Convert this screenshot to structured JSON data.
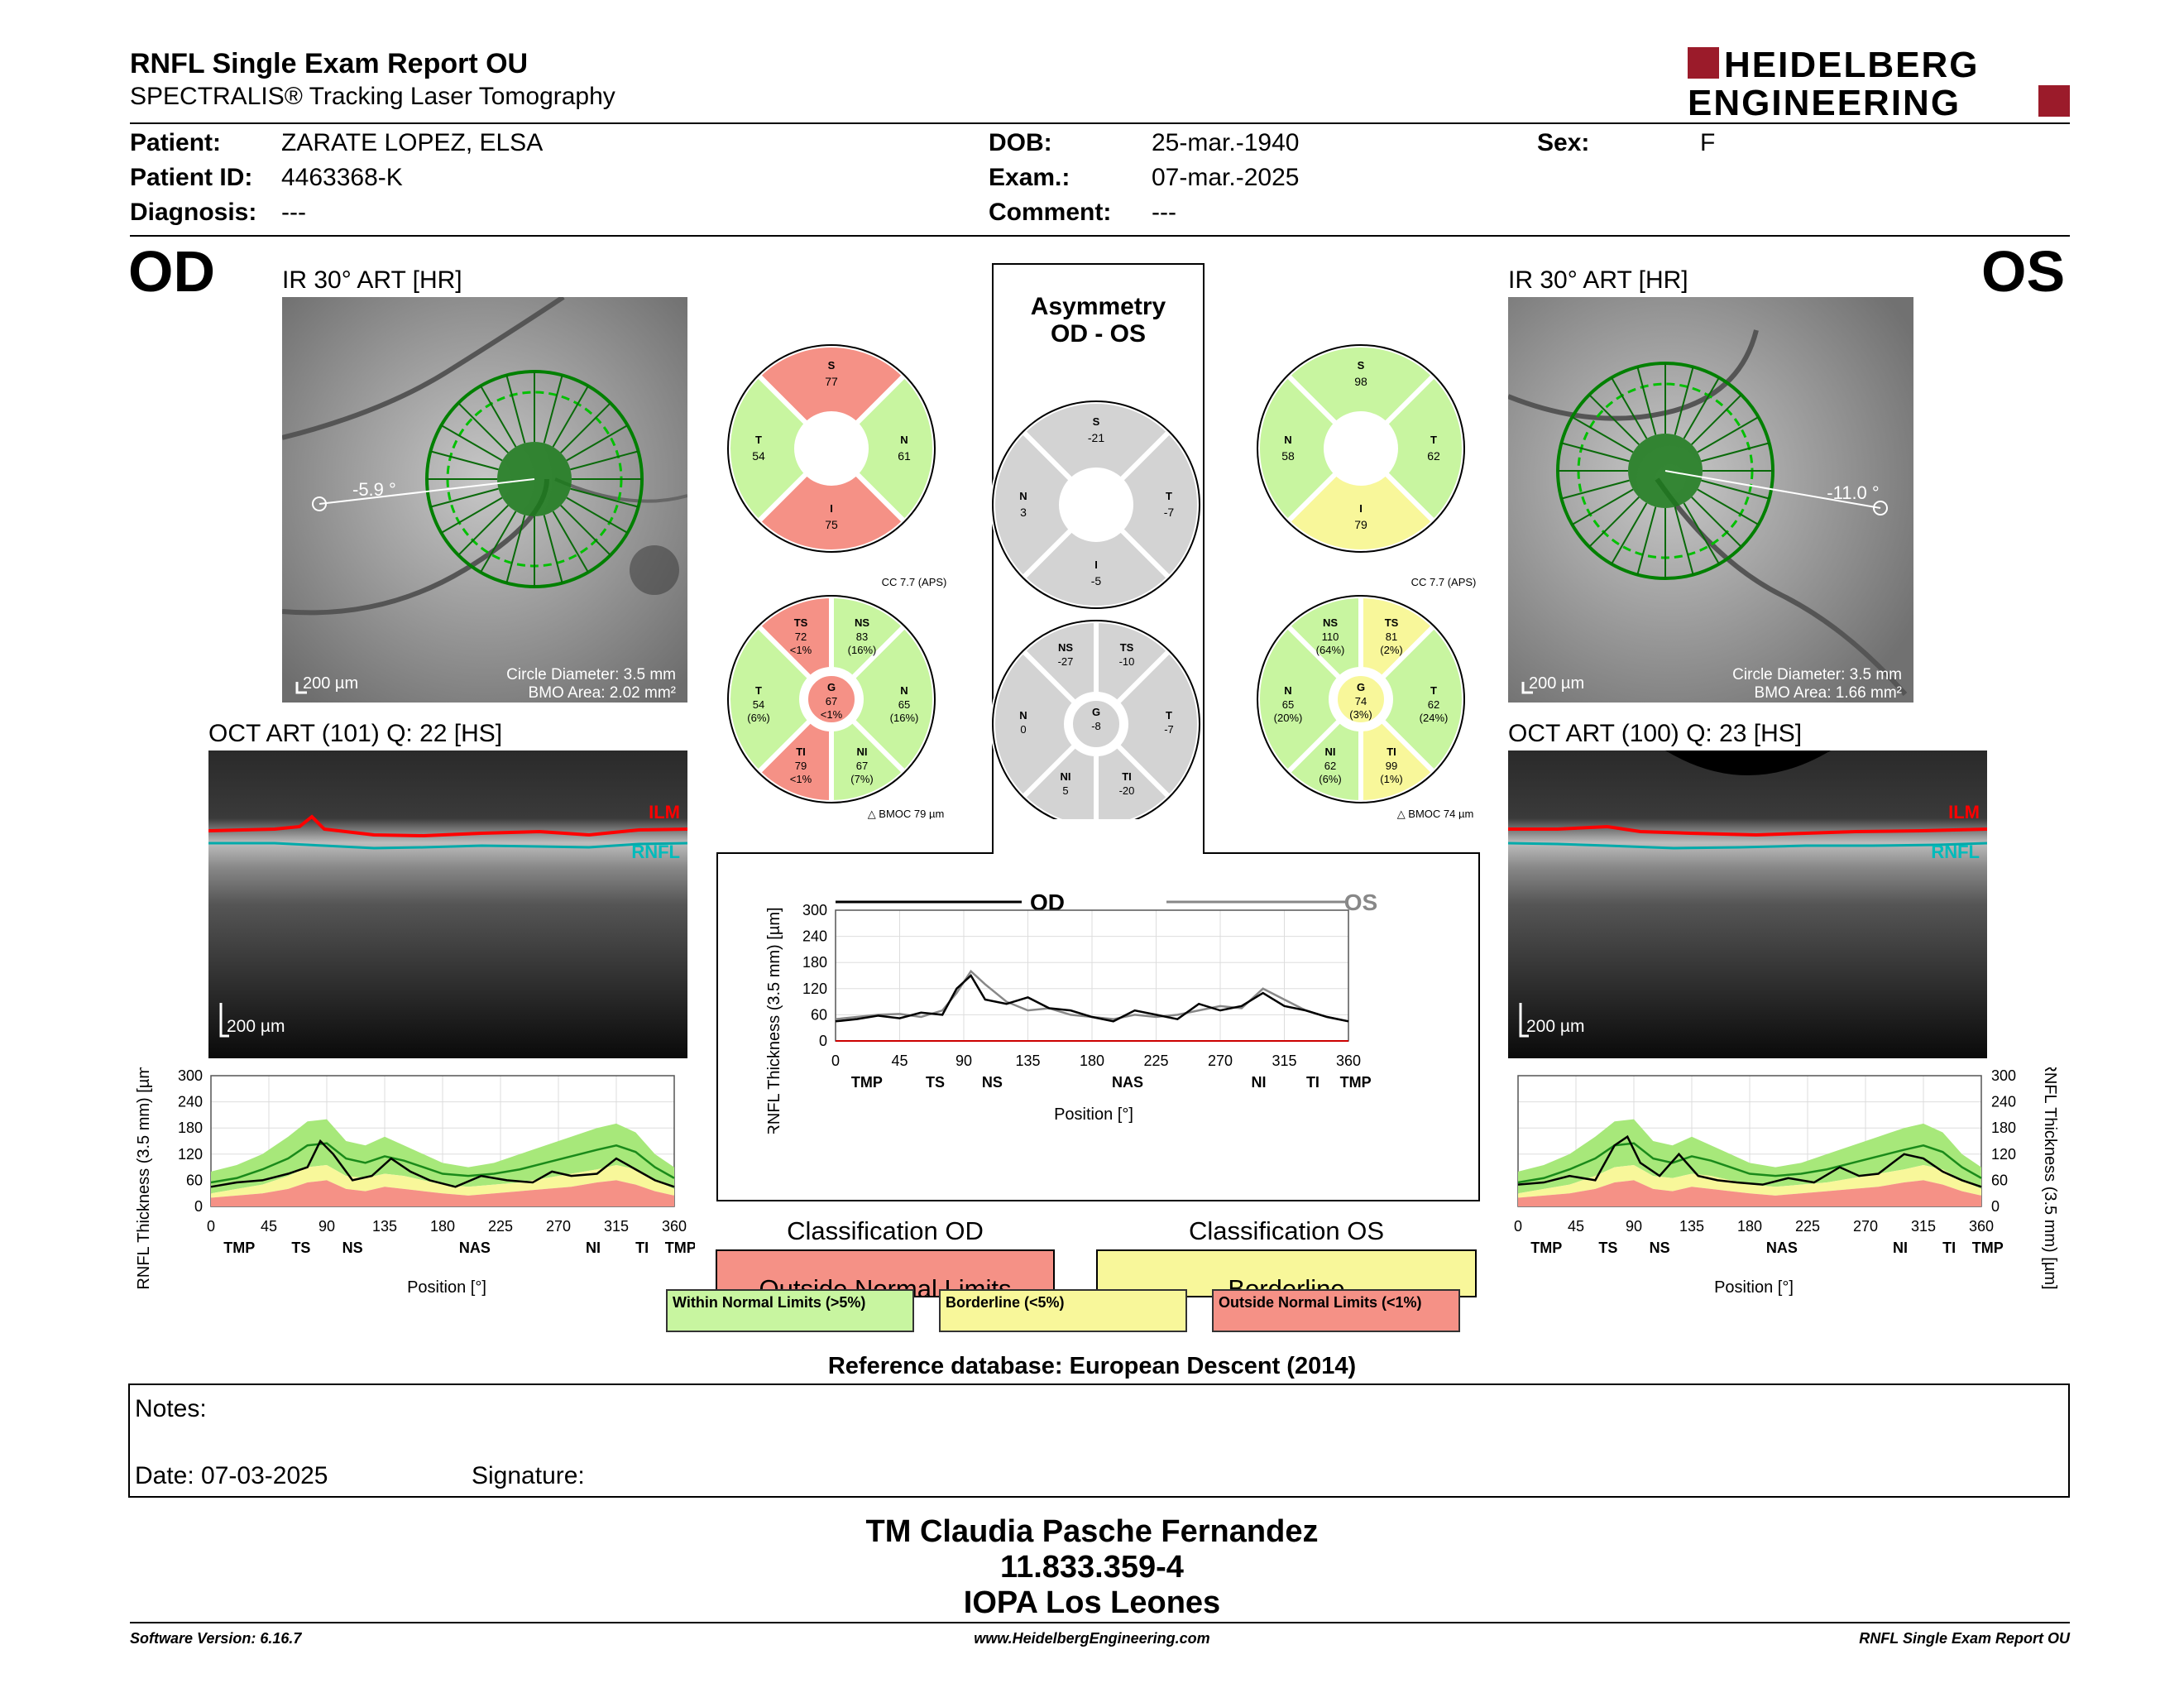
{
  "report": {
    "title": "RNFL Single Exam Report OU",
    "subtitle": "SPECTRALIS® Tracking Laser Tomography",
    "logo_line1": "HEIDELBERG",
    "logo_line2": "ENGINEERING"
  },
  "patient": {
    "patient_label": "Patient:",
    "patient_value": "ZARATE LOPEZ, ELSA",
    "id_label": "Patient ID:",
    "id_value": "4463368-K",
    "diag_label": "Diagnosis:",
    "diag_value": "---",
    "dob_label": "DOB:",
    "dob_value": "25-mar.-1940",
    "exam_label": "Exam.:",
    "exam_value": "07-mar.-2025",
    "comment_label": "Comment:",
    "comment_value": "---",
    "sex_label": "Sex:",
    "sex_value": "F"
  },
  "od": {
    "eye": "OD",
    "ir_caption": "IR 30° ART [HR]",
    "angle": "-5.9 °",
    "scale": "200 µm",
    "circle_diameter": "Circle Diameter: 3.5 mm",
    "bmo_area": "BMO Area: 2.02 mm²",
    "oct_caption": "OCT ART (101) Q: 22 [HS]",
    "oct_scale": "200 µm",
    "ilm": "ILM",
    "rnfl": "RNFL",
    "classification_title": "Classification OD",
    "classification_value": "Outside Normal Limits",
    "pie4": {
      "S": "77",
      "T": "54",
      "N": "61",
      "I": "75"
    },
    "pie6": {
      "TS": [
        "72",
        "<1%"
      ],
      "NS": [
        "83",
        "(16%)"
      ],
      "T": [
        "54",
        "(6%)"
      ],
      "G": [
        "67",
        "<1%"
      ],
      "N": [
        "65",
        "(16%)"
      ],
      "TI": [
        "79",
        "<1%"
      ],
      "NI": [
        "67",
        "(7%)"
      ]
    },
    "cc": "CC 7.7 (APS)",
    "bmo": "BMOC 79 µm"
  },
  "os": {
    "eye": "OS",
    "ir_caption": "IR 30° ART [HR]",
    "angle": "-11.0 °",
    "scale": "200 µm",
    "circle_diameter": "Circle Diameter: 3.5 mm",
    "bmo_area": "BMO Area: 1.66 mm²",
    "oct_caption": "OCT ART (100) Q: 23 [HS]",
    "oct_scale": "200 µm",
    "ilm": "ILM",
    "rnfl": "RNFL",
    "classification_title": "Classification OS",
    "classification_value": "Borderline",
    "pie4": {
      "S": "98",
      "N": "58",
      "T": "62",
      "I": "79"
    },
    "pie6": {
      "NS": [
        "110",
        "(64%)"
      ],
      "TS": [
        "81",
        "(2%)"
      ],
      "N": [
        "65",
        "(20%)"
      ],
      "G": [
        "74",
        "(3%)"
      ],
      "T": [
        "62",
        "(24%)"
      ],
      "NI": [
        "62",
        "(6%)"
      ],
      "TI": [
        "99",
        "(1%)"
      ]
    },
    "cc": "CC 7.7 (APS)",
    "bmo": "BMOC 74 µm"
  },
  "asym": {
    "title1": "Asymmetry",
    "title2": "OD - OS",
    "pie4": {
      "S": "-21",
      "N": "3",
      "T": "-7",
      "I": "-5"
    },
    "pie6": {
      "NS": "-27",
      "TS": "-10",
      "N": "0",
      "G": "-8",
      "T": "-7",
      "NI": "5",
      "TI": "-20"
    }
  },
  "center_chart": {
    "od_label": "OD",
    "os_label": "OS",
    "ylabel": "RNFL Thickness (3.5 mm) [µm]",
    "xlabel": "Position [°]"
  },
  "side_chart": {
    "ylabel": "RNFL Thickness (3.5 mm) [µm]",
    "xlabel": "Position [°]"
  },
  "legend": {
    "within": "Within Normal Limits (>5%)",
    "borderline": "Borderline (<5%)",
    "outside": "Outside Normal Limits (<1%)"
  },
  "reference": "Reference database: European Descent (2014)",
  "notes": {
    "label": "Notes:",
    "date": "Date: 07-03-2025",
    "signature": "Signature:"
  },
  "signer": {
    "name": "TM Claudia Pasche Fernandez",
    "id": "11.833.359-4",
    "place": "IOPA Los Leones"
  },
  "footer": {
    "left": "Software Version: 6.16.7",
    "center": "www.HeidelbergEngineering.com",
    "right": "RNFL Single Exam Report OU"
  },
  "colors": {
    "green": "#c8f5a0",
    "red": "#f59186",
    "yellow": "#f8f79a",
    "gray": "#d3d3d3"
  },
  "chart_data": [
    {
      "type": "line",
      "title": "",
      "xlabel": "Position [°]",
      "ylabel": "RNFL Thickness (3.5 mm) [µm]",
      "xlim": [
        0,
        360
      ],
      "ylim": [
        0,
        300
      ],
      "x_ticks": [
        0,
        45,
        90,
        135,
        180,
        225,
        270,
        315,
        360
      ],
      "y_ticks": [
        0,
        60,
        120,
        180,
        240,
        300
      ],
      "sector_labels": [
        "TMP",
        "TS",
        "NS",
        "NAS",
        "NI",
        "TI",
        "TMP"
      ],
      "series": [
        {
          "name": "OD",
          "x": [
            0,
            15,
            30,
            45,
            60,
            75,
            85,
            95,
            105,
            120,
            135,
            150,
            165,
            180,
            195,
            210,
            225,
            240,
            255,
            270,
            285,
            300,
            315,
            330,
            345,
            360
          ],
          "y": [
            45,
            50,
            58,
            52,
            65,
            60,
            120,
            150,
            95,
            85,
            100,
            75,
            70,
            55,
            45,
            70,
            60,
            50,
            85,
            70,
            80,
            110,
            80,
            70,
            55,
            45
          ]
        },
        {
          "name": "OS",
          "x": [
            0,
            15,
            30,
            45,
            60,
            75,
            85,
            95,
            105,
            120,
            135,
            150,
            165,
            180,
            195,
            210,
            225,
            240,
            255,
            270,
            285,
            300,
            315,
            330,
            345,
            360
          ],
          "y": [
            50,
            55,
            60,
            62,
            55,
            70,
            110,
            160,
            130,
            90,
            70,
            75,
            60,
            55,
            50,
            60,
            55,
            60,
            70,
            80,
            75,
            120,
            95,
            70,
            55,
            45
          ]
        }
      ]
    },
    {
      "type": "area",
      "xlabel": "Position [°]",
      "ylabel": "RNFL Thickness (3.5 mm) [µm]",
      "xlim": [
        0,
        360
      ],
      "ylim": [
        0,
        300
      ],
      "series": [
        {
          "name": "OD",
          "x": [
            0,
            20,
            40,
            60,
            75,
            85,
            95,
            110,
            125,
            140,
            155,
            170,
            190,
            210,
            230,
            250,
            265,
            280,
            300,
            315,
            330,
            345,
            360
          ],
          "y": [
            45,
            55,
            60,
            75,
            90,
            150,
            120,
            60,
            70,
            110,
            80,
            60,
            45,
            70,
            60,
            55,
            80,
            70,
            75,
            110,
            85,
            60,
            45
          ]
        },
        {
          "name": "OS",
          "x": [
            0,
            20,
            40,
            60,
            75,
            85,
            95,
            110,
            125,
            140,
            155,
            170,
            190,
            210,
            230,
            250,
            265,
            280,
            300,
            315,
            330,
            345,
            360
          ],
          "y": [
            50,
            55,
            70,
            60,
            140,
            160,
            100,
            70,
            120,
            70,
            60,
            55,
            50,
            65,
            55,
            90,
            70,
            75,
            120,
            110,
            80,
            60,
            45
          ]
        }
      ]
    }
  ]
}
